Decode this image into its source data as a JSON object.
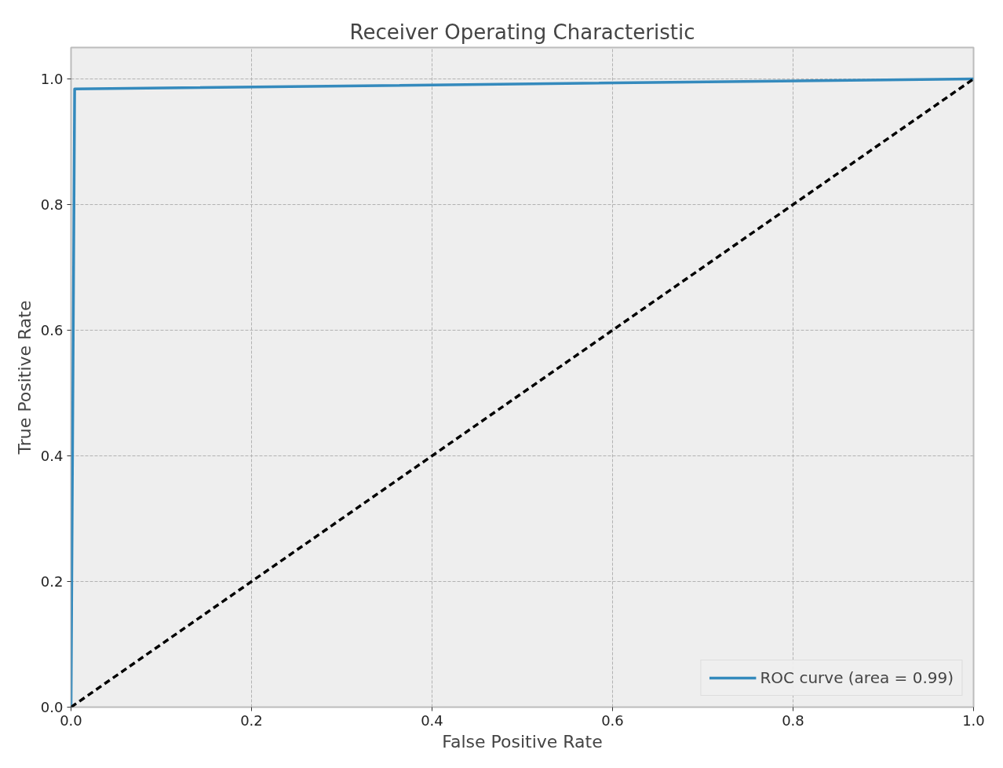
{
  "chart_data": {
    "type": "line",
    "title": "Receiver Operating Characteristic",
    "xlabel": "False Positive Rate",
    "ylabel": "True Positive Rate",
    "series": [
      {
        "name": "ROC curve (area = 0.99)",
        "color": "#348abd",
        "x": [
          0,
          0.004,
          1
        ],
        "values": [
          0,
          0.984,
          1
        ],
        "line_style": "solid"
      },
      {
        "color": "#000000",
        "x": [
          0,
          1
        ],
        "values": [
          0,
          1
        ],
        "line_style": "dashed"
      }
    ],
    "xlim": [
      0,
      1
    ],
    "ylim": [
      0,
      1.05
    ],
    "xticks": [
      {
        "value": 0,
        "label": "0.0"
      },
      0.2,
      0.4,
      0.6,
      0.8,
      {
        "value": 1,
        "label": "1.0"
      }
    ],
    "yticks": [
      {
        "value": 0,
        "label": "0.0"
      },
      0.2,
      0.4,
      0.6,
      0.8,
      {
        "value": 1,
        "label": "1.0"
      }
    ],
    "grid": true,
    "legend": "bottom right",
    "marker": "none"
  }
}
